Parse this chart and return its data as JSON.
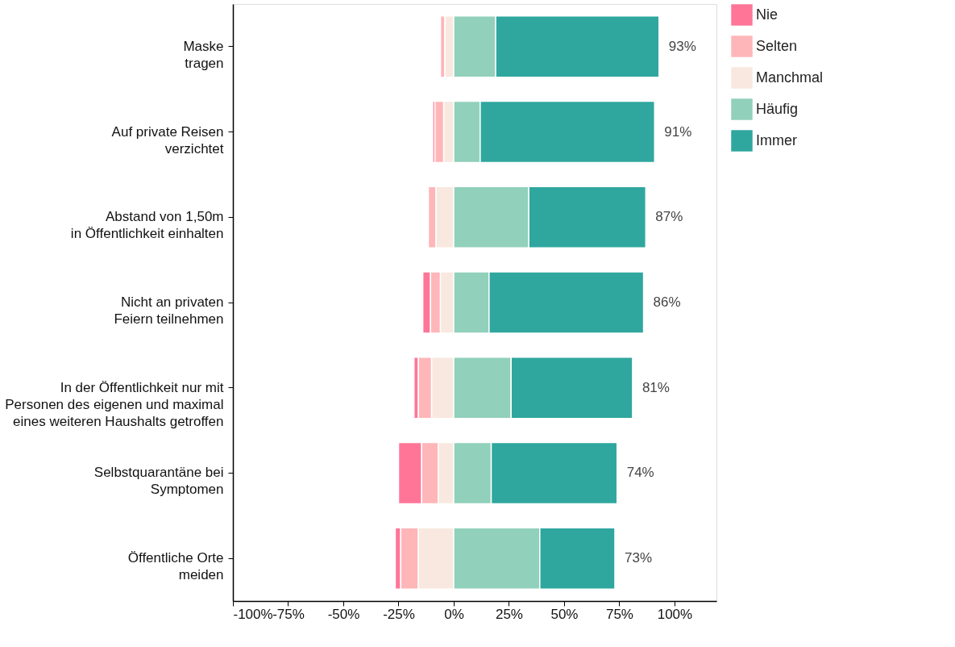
{
  "chart_data": {
    "type": "bar",
    "orientation": "horizontal",
    "stacked": true,
    "categories": [
      "Maske\ntragen",
      "Auf private Reisen\nverzichtet",
      "Abstand von 1,50m\nin Öffentlichkeit einhalten",
      "Nicht an privaten\nFeiern teilnehmen",
      "In der Öffentlichkeit nur mit\nPersonen des eigenen und maximal\neines weiteren Haushalts getroffen",
      "Selbstquarantäne bei\nSymptomen",
      "Öffentliche Orte\nmeiden"
    ],
    "series": [
      {
        "name": "Nie",
        "color": "#ff7598",
        "values": [
          0,
          -1,
          0,
          -3.5,
          -2,
          -10.5,
          -2.5
        ]
      },
      {
        "name": "Selten",
        "color": "#ffb6b9",
        "values": [
          -2,
          -4,
          -3.5,
          -4.5,
          -6,
          -7.5,
          -8
        ]
      },
      {
        "name": "Manchmal",
        "color": "#f8e8df",
        "values": [
          -4,
          -4.5,
          -8,
          -6,
          -10,
          -7,
          -16
        ]
      },
      {
        "name": "Häufig",
        "color": "#91d0bb",
        "values": [
          19,
          12,
          34,
          16,
          26,
          17,
          39
        ]
      },
      {
        "name": "Immer",
        "color": "#2fa79e",
        "values": [
          74,
          79,
          53,
          70,
          55,
          57,
          34
        ]
      }
    ],
    "annotations": [
      {
        "text": "93%",
        "x": 93,
        "y": "Maske\ntragen"
      },
      {
        "text": "91%",
        "x": 91,
        "y": "Auf private Reisen\nverzichtet"
      },
      {
        "text": "87%",
        "x": 87,
        "y": "Abstand von 1,50m\nin Öffentlichkeit einhalten"
      },
      {
        "text": "86%",
        "x": 86,
        "y": "Nicht an privaten\nFeiern teilnehmen"
      },
      {
        "text": "81%",
        "x": 81,
        "y": "In der Öffentlichkeit nur mit\nPersonen des eigenen und maximal\neines weiteren Haushalts getroffen"
      },
      {
        "text": "74%",
        "x": 74,
        "y": "Selbstquarantäne bei\nSymptomen"
      },
      {
        "text": "73%",
        "x": 73,
        "y": "Öffentliche Orte\nmeiden"
      }
    ],
    "xlim": [
      -100,
      119
    ],
    "xticks": [
      {
        "value": -100,
        "label": "-100%"
      },
      {
        "value": -75,
        "label": "-75%"
      },
      {
        "value": -50,
        "label": "-50%"
      },
      {
        "value": -25,
        "label": "-25%"
      },
      {
        "value": 0,
        "label": "0%"
      },
      {
        "value": 25,
        "label": "25%"
      },
      {
        "value": 50,
        "label": "50%"
      },
      {
        "value": 75,
        "label": "75%"
      },
      {
        "value": 100,
        "label": "100%"
      }
    ],
    "grid": false,
    "legend": "right"
  }
}
